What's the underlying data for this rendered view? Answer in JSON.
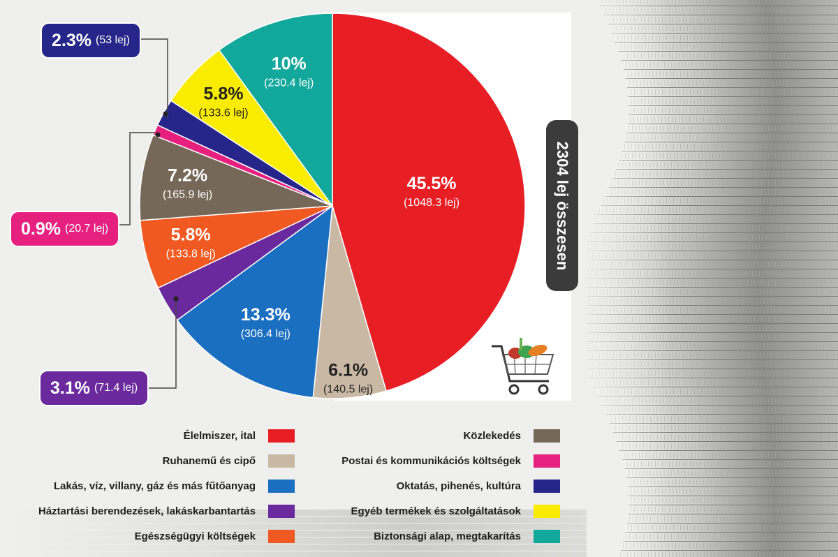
{
  "total_label": "2304 lej összesen",
  "chart_data": {
    "type": "pie",
    "unit": "lej",
    "total": 2304,
    "slices": [
      {
        "name": "Élelmiszer, ital",
        "percent": 45.5,
        "percent_label": "45.5%",
        "value": 1048.3,
        "value_label": "(1048.3 lej)",
        "color": "#e81e25"
      },
      {
        "name": "Ruhanemű és cipő",
        "percent": 6.1,
        "percent_label": "6.1%",
        "value": 140.5,
        "value_label": "(140.5 lej)",
        "color": "#c9b9a4"
      },
      {
        "name": "Lakás, víz, villany, gáz és más fűtőanyag",
        "percent": 13.3,
        "percent_label": "13.3%",
        "value": 306.4,
        "value_label": "(306.4 lej)",
        "color": "#1b6fc1"
      },
      {
        "name": "Háztartási berendezések, lakáskarbantartás",
        "percent": 3.1,
        "percent_label": "3.1%",
        "value": 71.4,
        "value_label": "(71.4 lej)",
        "color": "#6a2a9e"
      },
      {
        "name": "Egészségügyi költségek",
        "percent": 5.8,
        "percent_label": "5.8%",
        "value": 133.8,
        "value_label": "(133.8 lej)",
        "color": "#f05a22"
      },
      {
        "name": "Közlekedés",
        "percent": 7.2,
        "percent_label": "7.2%",
        "value": 165.9,
        "value_label": "(165.9 lej)",
        "color": "#766858"
      },
      {
        "name": "Postai és kommunikációs költségek",
        "percent": 0.9,
        "percent_label": "0.9%",
        "value": 20.7,
        "value_label": "(20.7 lej)",
        "color": "#e6207f"
      },
      {
        "name": "Oktatás, pihenés, kultúra",
        "percent": 2.3,
        "percent_label": "2.3%",
        "value": 53,
        "value_label": "(53 lej)",
        "color": "#26268a"
      },
      {
        "name": "Egyéb termékek és szolgáltatások",
        "percent": 5.8,
        "percent_label": "5.8%",
        "value": 133.6,
        "value_label": "(133.6 lej)",
        "color": "#f9ec00"
      },
      {
        "name": "Biztonsági alap, megtakarítás",
        "percent": 10,
        "percent_label": "10%",
        "value": 230.4,
        "value_label": "(230.4 lej)",
        "color": "#13a89c"
      }
    ],
    "legend_left": [
      "Élelmiszer, ital",
      "Ruhanemű és cipő",
      "Lakás, víz, villany, gáz és más fűtőanyag",
      "Háztartási berendezések, lakáskarbantartás",
      "Egészségügyi költségek"
    ],
    "legend_right": [
      "Közlekedés",
      "Postai és kommunikációs költségek",
      "Oktatás, pihenés, kultúra",
      "Egyéb termékek és szolgáltatások",
      "Biztonsági alap, megtakarítás"
    ]
  }
}
